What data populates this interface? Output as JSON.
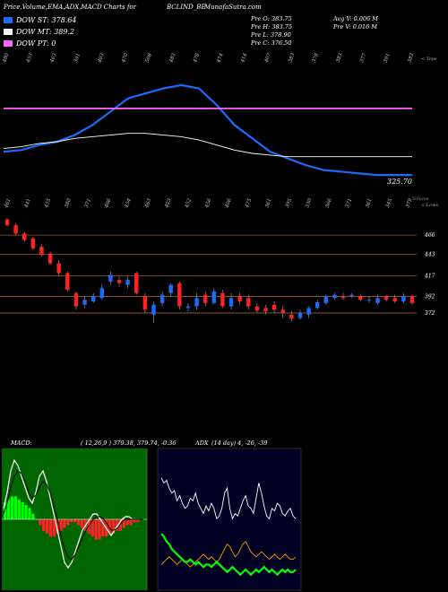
{
  "header": {
    "left": "Price,Volume,EMA,ADX,MACD Charts for",
    "symbol": "BCLIND_BE",
    "site": "MunafaSutra.com"
  },
  "legend": [
    {
      "label": "DOW ST: 378.64",
      "color": "#1a6bff"
    },
    {
      "label": "DOW MT: 389.2",
      "color": "#ffffff"
    },
    {
      "label": "DOW PT: 0",
      "color": "#ff66ff"
    }
  ],
  "stats": {
    "open": "Pre O: 383.75",
    "high": "Pre H: 383.75",
    "low": "Pre L: 378.90",
    "close": "Pre C: 376.50",
    "avg_volume": "Avg V: 0.006 M",
    "pre_volume": "Pre V: 0.016 M"
  },
  "volume_label": "Volume",
  "macd_label": "MACD:",
  "macd_values": "( 12,26,9 ) 379.38, 379.74, -0.36",
  "adx_label": "ADX",
  "adx_values": "(14 day) 4, -26, -39",
  "price_label": "325.70",
  "chart_data": [
    {
      "type": "line",
      "name": "price-ema-panel",
      "top_labels": [
        "480",
        "453",
        "463",
        "391",
        "403",
        "470",
        "508",
        "483",
        "476",
        "474",
        "414",
        "407",
        "383",
        "378",
        "383",
        "377",
        "391",
        "383"
      ],
      "top_axis_note": "< Tops",
      "price_label": "325.70",
      "series": [
        {
          "name": "DOW ST",
          "color": "#1a6bff",
          "values": [
            392,
            393,
            396,
            398,
            402,
            408,
            416,
            424,
            427,
            430,
            432,
            430,
            420,
            408,
            400,
            392,
            388,
            384,
            381,
            380,
            379,
            378,
            378,
            378
          ]
        },
        {
          "name": "DOW MT",
          "color": "#ffffff",
          "values": [
            394,
            395,
            397,
            398,
            400,
            401,
            402,
            403,
            403,
            402,
            401,
            399,
            396,
            393,
            391,
            390,
            389,
            389,
            389,
            389,
            389,
            389,
            389,
            389
          ]
        },
        {
          "name": "DOW PT",
          "color": "#ff66ff",
          "values": [
            418,
            418,
            418,
            418,
            418,
            418,
            418,
            418,
            418,
            418,
            418,
            418,
            418,
            418,
            418,
            418,
            418,
            418,
            418,
            418,
            418,
            418,
            418,
            418
          ]
        }
      ]
    },
    {
      "type": "candlestick",
      "name": "candle-panel",
      "bottom_labels": [
        "461",
        "441",
        "435",
        "380",
        "371",
        "406",
        "454",
        "463",
        "403",
        "452",
        "456",
        "406",
        "475",
        "361",
        "395",
        "330",
        "366",
        "371",
        "361",
        "345",
        "379"
      ],
      "bottom_axis_note": "< Lows",
      "levels": [
        466,
        443,
        417,
        392,
        372
      ],
      "ylim": [
        360,
        490
      ],
      "candles": [
        {
          "o": 485,
          "c": 478,
          "h": 487,
          "l": 476
        },
        {
          "o": 478,
          "c": 468,
          "h": 480,
          "l": 466
        },
        {
          "o": 468,
          "c": 460,
          "h": 470,
          "l": 458
        },
        {
          "o": 462,
          "c": 450,
          "h": 464,
          "l": 448
        },
        {
          "o": 452,
          "c": 442,
          "h": 455,
          "l": 440
        },
        {
          "o": 444,
          "c": 432,
          "h": 446,
          "l": 430
        },
        {
          "o": 432,
          "c": 420,
          "h": 436,
          "l": 418
        },
        {
          "o": 420,
          "c": 400,
          "h": 422,
          "l": 398
        },
        {
          "o": 396,
          "c": 380,
          "h": 398,
          "l": 376
        },
        {
          "o": 382,
          "c": 388,
          "h": 392,
          "l": 378
        },
        {
          "o": 386,
          "c": 392,
          "h": 396,
          "l": 384
        },
        {
          "o": 390,
          "c": 402,
          "h": 406,
          "l": 388
        },
        {
          "o": 410,
          "c": 418,
          "h": 422,
          "l": 406
        },
        {
          "o": 412,
          "c": 408,
          "h": 416,
          "l": 404
        },
        {
          "o": 406,
          "c": 412,
          "h": 416,
          "l": 402
        },
        {
          "o": 420,
          "c": 396,
          "h": 422,
          "l": 394
        },
        {
          "o": 392,
          "c": 376,
          "h": 396,
          "l": 372
        },
        {
          "o": 370,
          "c": 382,
          "h": 386,
          "l": 360
        },
        {
          "o": 384,
          "c": 394,
          "h": 398,
          "l": 380
        },
        {
          "o": 396,
          "c": 406,
          "h": 408,
          "l": 392
        },
        {
          "o": 408,
          "c": 380,
          "h": 410,
          "l": 376
        },
        {
          "o": 378,
          "c": 380,
          "h": 384,
          "l": 374
        },
        {
          "o": 380,
          "c": 390,
          "h": 396,
          "l": 376
        },
        {
          "o": 394,
          "c": 384,
          "h": 398,
          "l": 380
        },
        {
          "o": 384,
          "c": 398,
          "h": 402,
          "l": 382
        },
        {
          "o": 396,
          "c": 380,
          "h": 400,
          "l": 378
        },
        {
          "o": 380,
          "c": 390,
          "h": 396,
          "l": 376
        },
        {
          "o": 392,
          "c": 386,
          "h": 396,
          "l": 382
        },
        {
          "o": 390,
          "c": 380,
          "h": 394,
          "l": 376
        },
        {
          "o": 380,
          "c": 375,
          "h": 384,
          "l": 372
        },
        {
          "o": 378,
          "c": 374,
          "h": 382,
          "l": 370
        },
        {
          "o": 382,
          "c": 376,
          "h": 386,
          "l": 372
        },
        {
          "o": 376,
          "c": 372,
          "h": 380,
          "l": 366
        },
        {
          "o": 370,
          "c": 365,
          "h": 374,
          "l": 362
        },
        {
          "o": 366,
          "c": 372,
          "h": 376,
          "l": 364
        },
        {
          "o": 370,
          "c": 378,
          "h": 380,
          "l": 366
        },
        {
          "o": 378,
          "c": 385,
          "h": 388,
          "l": 376
        },
        {
          "o": 384,
          "c": 392,
          "h": 394,
          "l": 382
        },
        {
          "o": 390,
          "c": 394,
          "h": 396,
          "l": 388
        },
        {
          "o": 392,
          "c": 390,
          "h": 396,
          "l": 388
        },
        {
          "o": 392,
          "c": 394,
          "h": 396,
          "l": 390
        },
        {
          "o": 392,
          "c": 388,
          "h": 394,
          "l": 386
        },
        {
          "o": 388,
          "c": 388,
          "h": 392,
          "l": 384
        },
        {
          "o": 384,
          "c": 390,
          "h": 394,
          "l": 382
        },
        {
          "o": 392,
          "c": 388,
          "h": 394,
          "l": 386
        },
        {
          "o": 390,
          "c": 386,
          "h": 394,
          "l": 384
        },
        {
          "o": 386,
          "c": 392,
          "h": 396,
          "l": 384
        },
        {
          "o": 392,
          "c": 384,
          "h": 394,
          "l": 382
        }
      ]
    },
    {
      "type": "bar",
      "name": "macd-panel",
      "histogram": [
        6,
        7,
        8,
        8,
        7,
        6,
        5,
        4,
        2,
        0,
        -2,
        -4,
        -5,
        -6,
        -6,
        -5,
        -4,
        -3,
        -2,
        -1,
        -1,
        -2,
        -3,
        -4,
        -5,
        -6,
        -7,
        -7,
        -6,
        -6,
        -5,
        -5,
        -4,
        -4,
        -3,
        -2,
        -2,
        -1,
        -1,
        0
      ],
      "macd_line": [
        4,
        10,
        18,
        22,
        20,
        16,
        12,
        8,
        6,
        10,
        16,
        18,
        14,
        8,
        2,
        -4,
        -10,
        -16,
        -18,
        -16,
        -12,
        -8,
        -4,
        -2,
        0,
        2,
        2,
        0,
        -2,
        -4,
        -6,
        -4,
        -2,
        0,
        1,
        1,
        0,
        0,
        0,
        0
      ],
      "signal_line": [
        2,
        6,
        12,
        16,
        18,
        17,
        14,
        10,
        8,
        9,
        12,
        14,
        13,
        10,
        5,
        0,
        -6,
        -11,
        -14,
        -15,
        -13,
        -10,
        -7,
        -4,
        -2,
        0,
        1,
        1,
        0,
        -2,
        -4,
        -4,
        -3,
        -1,
        0,
        0,
        0,
        0,
        0,
        0
      ]
    },
    {
      "type": "line",
      "name": "adx-panel",
      "series": [
        {
          "name": "",
          "color": "#ffffff",
          "values": [
            42,
            40,
            41,
            38,
            36,
            37,
            33,
            35,
            32,
            30,
            31,
            34,
            33,
            36,
            32,
            30,
            28,
            31,
            29,
            32,
            30,
            26,
            27,
            30,
            36,
            38,
            30,
            26,
            28,
            27,
            30,
            33,
            35,
            31,
            30,
            28,
            34,
            40,
            36,
            31,
            27,
            26,
            30,
            29,
            32,
            31,
            28,
            27,
            29,
            30,
            27,
            26
          ]
        },
        {
          "name": "",
          "color": "#ff9900",
          "values": [
            8,
            9,
            10,
            11,
            10,
            9,
            8,
            9,
            10,
            9,
            8,
            7,
            8,
            9,
            10,
            11,
            12,
            11,
            10,
            11,
            10,
            9,
            10,
            12,
            14,
            16,
            15,
            13,
            11,
            12,
            14,
            16,
            17,
            15,
            13,
            12,
            11,
            12,
            13,
            12,
            11,
            10,
            11,
            12,
            11,
            10,
            11,
            12,
            11,
            10,
            10,
            11
          ]
        },
        {
          "name": "",
          "color": "#00ff00",
          "values": [
            20,
            19,
            17,
            16,
            14,
            13,
            12,
            11,
            10,
            9,
            9,
            10,
            9,
            8,
            9,
            8,
            7,
            8,
            8,
            7,
            8,
            9,
            8,
            7,
            6,
            5,
            6,
            7,
            6,
            5,
            4,
            5,
            6,
            5,
            4,
            5,
            6,
            5,
            6,
            7,
            6,
            5,
            6,
            5,
            4,
            5,
            6,
            5,
            6,
            5,
            5,
            6
          ]
        }
      ]
    }
  ]
}
